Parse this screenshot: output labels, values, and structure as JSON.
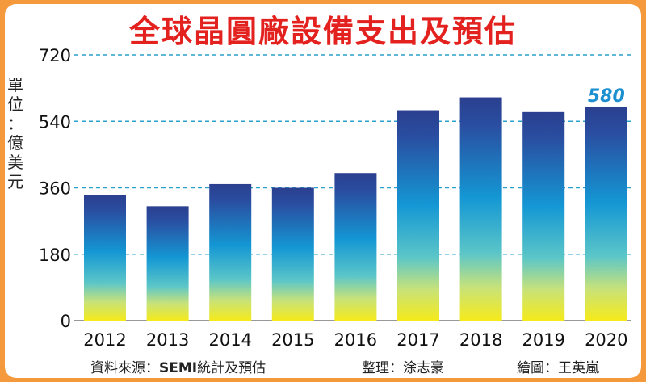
{
  "chart_data": {
    "type": "bar",
    "title": "全球晶圓廠設備支出及預估",
    "ylabel": "單位：億美元",
    "categories": [
      "2012",
      "2013",
      "2014",
      "2015",
      "2016",
      "2017",
      "2018",
      "2019",
      "2020"
    ],
    "values": [
      340,
      310,
      370,
      360,
      400,
      570,
      605,
      565,
      580
    ],
    "highlight_label": {
      "index": 8,
      "text": "580"
    },
    "yticks": [
      0,
      180,
      360,
      540,
      720
    ],
    "ylim": [
      0,
      720
    ],
    "grid": true
  },
  "footer": {
    "source_prefix": "資料來源：",
    "source_org": "SEMI",
    "source_suffix": "統計及預估",
    "editor": "整理：涂志豪",
    "illustrator": "繪圖：王英嵐"
  },
  "colors": {
    "title": "#e3211e",
    "grid": "#2aa0cc",
    "highlight": "#1b8fd0",
    "bar_top": "#2b3f8f",
    "bar_mid": "#1497d4",
    "bar_low": "#8fd3a8",
    "bar_bottom": "#f5ea1a",
    "frame": "#f49a3c"
  }
}
